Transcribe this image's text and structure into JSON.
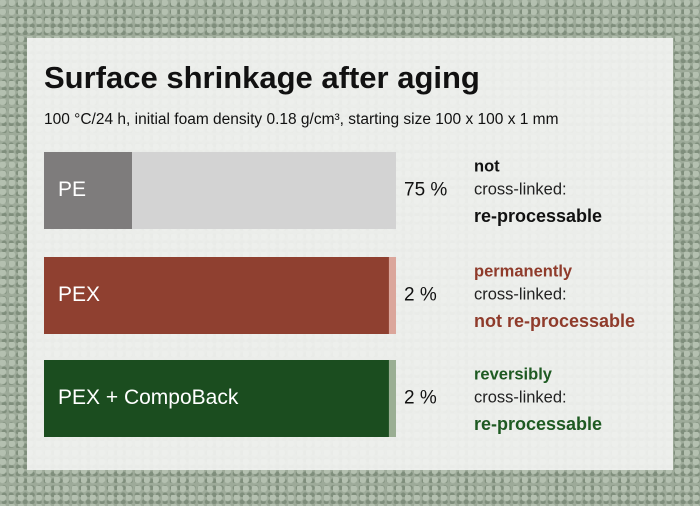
{
  "chart_data": {
    "type": "bar",
    "title": "Surface shrinkage after aging",
    "subtitle": "100 °C/24 h, initial foam density 0.18 g/cm³, starting size 100 x 100 x 1 mm",
    "categories": [
      "PE",
      "PEX",
      "PEX + CompoBack"
    ],
    "values": [
      75,
      2,
      2
    ],
    "value_labels": [
      "75 %",
      "2 %",
      "2 %"
    ],
    "xlim": [
      0,
      100
    ],
    "colors": [
      "#d3d3d3",
      "#dba69b",
      "#9aae93"
    ],
    "base_colors": [
      "#7e7c7c",
      "#8f4030",
      "#1b4d1f"
    ],
    "annotations": [
      {
        "lines": [
          "not",
          "cross-linked:",
          "re-processable"
        ],
        "color": "#111111"
      },
      {
        "lines": [
          "permanently",
          "cross-linked:",
          "not re-processable"
        ],
        "color": "#8f3b2b"
      },
      {
        "lines": [
          "reversibly",
          "cross-linked:",
          "re-processable"
        ],
        "color": "#1e5a22"
      }
    ]
  }
}
